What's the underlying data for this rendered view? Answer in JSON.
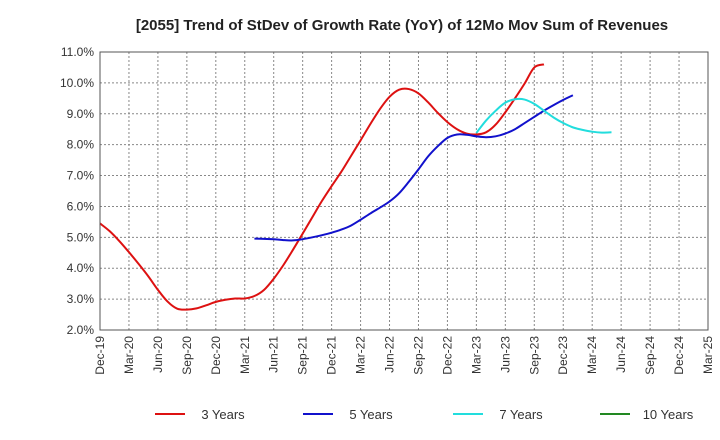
{
  "chart_data": {
    "type": "line",
    "title": "[2055]  Trend of StDev of Growth Rate (YoY) of 12Mo Mov Sum of Revenues",
    "xlabel": "",
    "ylabel": "",
    "ylim": [
      2.0,
      11.0
    ],
    "y_ticks": [
      2.0,
      3.0,
      4.0,
      5.0,
      6.0,
      7.0,
      8.0,
      9.0,
      10.0,
      11.0
    ],
    "y_tick_labels": [
      "2.0%",
      "3.0%",
      "4.0%",
      "5.0%",
      "6.0%",
      "7.0%",
      "8.0%",
      "9.0%",
      "10.0%",
      "11.0%"
    ],
    "x_tick_labels": [
      "Dec-19",
      "Mar-20",
      "Jun-20",
      "Sep-20",
      "Dec-20",
      "Mar-21",
      "Jun-21",
      "Sep-21",
      "Dec-21",
      "Mar-22",
      "Jun-22",
      "Sep-22",
      "Dec-22",
      "Mar-23",
      "Jun-23",
      "Sep-23",
      "Dec-23",
      "Mar-24",
      "Jun-24",
      "Sep-24",
      "Dec-24",
      "Mar-25"
    ],
    "grid": true,
    "legend_position": "bottom",
    "series": [
      {
        "name": "3 Years",
        "color": "#dd1111",
        "values": [
          [
            0,
            5.45
          ],
          [
            1,
            5.2
          ],
          [
            2,
            4.88
          ],
          [
            3,
            4.52
          ],
          [
            4,
            4.14
          ],
          [
            5,
            3.74
          ],
          [
            6,
            3.3
          ],
          [
            7,
            2.92
          ],
          [
            8,
            2.69
          ],
          [
            9,
            2.66
          ],
          [
            10,
            2.7
          ],
          [
            11,
            2.8
          ],
          [
            12,
            2.91
          ],
          [
            13,
            2.98
          ],
          [
            14,
            3.02
          ],
          [
            15,
            3.02
          ],
          [
            16,
            3.1
          ],
          [
            17,
            3.3
          ],
          [
            18,
            3.66
          ],
          [
            19,
            4.1
          ],
          [
            20,
            4.6
          ],
          [
            21,
            5.12
          ],
          [
            22,
            5.65
          ],
          [
            23,
            6.18
          ],
          [
            24,
            6.66
          ],
          [
            25,
            7.12
          ],
          [
            26,
            7.63
          ],
          [
            27,
            8.14
          ],
          [
            28,
            8.66
          ],
          [
            29,
            9.15
          ],
          [
            30,
            9.55
          ],
          [
            31,
            9.78
          ],
          [
            32,
            9.8
          ],
          [
            33,
            9.66
          ],
          [
            34,
            9.37
          ],
          [
            35,
            9.03
          ],
          [
            36,
            8.73
          ],
          [
            37,
            8.5
          ],
          [
            38,
            8.36
          ],
          [
            39,
            8.33
          ],
          [
            40,
            8.4
          ],
          [
            41,
            8.65
          ],
          [
            42,
            9.05
          ],
          [
            43,
            9.5
          ],
          [
            44,
            9.98
          ],
          [
            45,
            10.5
          ],
          [
            46,
            10.6
          ]
        ]
      },
      {
        "name": "5 Years",
        "color": "#1111cc",
        "values": [
          [
            16,
            4.96
          ],
          [
            17,
            4.95
          ],
          [
            18,
            4.94
          ],
          [
            19,
            4.91
          ],
          [
            20,
            4.9
          ],
          [
            21,
            4.94
          ],
          [
            22,
            5.0
          ],
          [
            23,
            5.07
          ],
          [
            24,
            5.15
          ],
          [
            25,
            5.25
          ],
          [
            26,
            5.38
          ],
          [
            27,
            5.57
          ],
          [
            28,
            5.77
          ],
          [
            29,
            5.96
          ],
          [
            30,
            6.16
          ],
          [
            31,
            6.43
          ],
          [
            32,
            6.8
          ],
          [
            33,
            7.2
          ],
          [
            34,
            7.62
          ],
          [
            35,
            7.95
          ],
          [
            36,
            8.22
          ],
          [
            37,
            8.33
          ],
          [
            38,
            8.32
          ],
          [
            39,
            8.27
          ],
          [
            40,
            8.24
          ],
          [
            41,
            8.27
          ],
          [
            42,
            8.36
          ],
          [
            43,
            8.5
          ],
          [
            44,
            8.7
          ],
          [
            45,
            8.9
          ],
          [
            46,
            9.1
          ],
          [
            47,
            9.28
          ],
          [
            48,
            9.45
          ],
          [
            49,
            9.6
          ]
        ]
      },
      {
        "name": "7 Years",
        "color": "#22dddd",
        "values": [
          [
            39,
            8.38
          ],
          [
            40,
            8.78
          ],
          [
            41,
            9.1
          ],
          [
            42,
            9.36
          ],
          [
            43,
            9.47
          ],
          [
            44,
            9.46
          ],
          [
            45,
            9.32
          ],
          [
            46,
            9.1
          ],
          [
            47,
            8.88
          ],
          [
            48,
            8.7
          ],
          [
            49,
            8.56
          ],
          [
            50,
            8.48
          ],
          [
            51,
            8.42
          ],
          [
            52,
            8.39
          ],
          [
            53,
            8.4
          ]
        ]
      },
      {
        "name": "10 Years",
        "color": "#228822",
        "values": []
      }
    ]
  }
}
